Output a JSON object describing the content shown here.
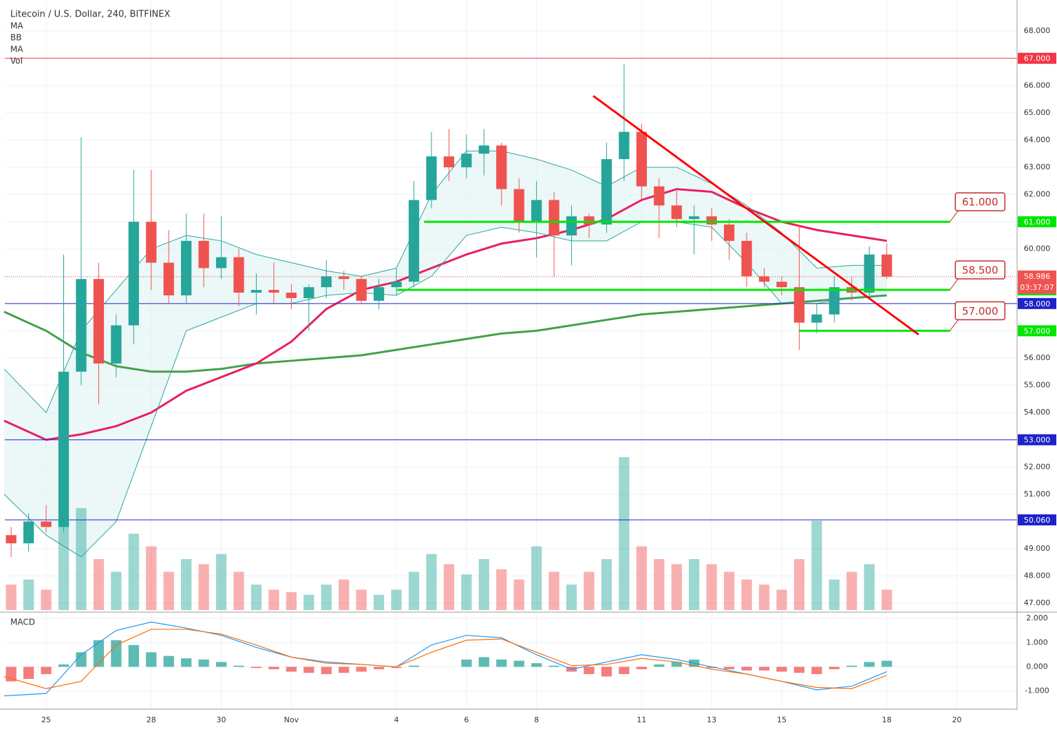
{
  "chart_data": [
    {
      "type": "candlestick",
      "title": "Litecoin / U.S. Dollar, 240, BITFINEX",
      "indicators": [
        "MA",
        "BB",
        "MA",
        "Vol"
      ],
      "x": [
        -1,
        -0.5,
        0,
        0.5,
        1,
        1.5,
        2,
        2.5,
        3,
        3.5,
        4,
        4.5,
        5,
        5.5,
        6,
        6.5,
        7,
        7.5,
        8,
        8.5,
        9,
        9.5,
        10,
        10.5,
        11,
        11.5,
        12,
        12.5,
        13,
        13.5,
        14,
        14.5,
        15,
        15.5,
        16,
        16.5,
        17,
        17.5,
        18,
        18.5,
        19,
        19.5,
        20,
        20.5,
        21,
        21.5,
        22,
        22.5,
        23,
        23.5,
        24
      ],
      "open": [
        49.5,
        49.2,
        50.0,
        49.8,
        55.5,
        58.9,
        55.8,
        57.2,
        61.0,
        59.5,
        58.3,
        60.3,
        59.3,
        59.7,
        58.4,
        58.5,
        58.4,
        58.2,
        58.6,
        59.0,
        58.9,
        58.1,
        58.6,
        58.8,
        61.8,
        63.4,
        63.0,
        63.5,
        63.8,
        62.2,
        61.0,
        61.8,
        60.5,
        61.2,
        60.9,
        63.3,
        64.3,
        62.3,
        61.6,
        61.1,
        61.2,
        60.9,
        60.3,
        59.0,
        58.8,
        58.6,
        57.3,
        57.6,
        58.6,
        58.4,
        59.8
      ],
      "high": [
        49.8,
        50.3,
        50.6,
        59.8,
        64.1,
        59.5,
        57.6,
        62.9,
        62.9,
        60.7,
        61.3,
        61.3,
        61.2,
        60.0,
        59.1,
        59.5,
        58.7,
        58.7,
        59.6,
        59.2,
        59.0,
        58.9,
        59.3,
        62.5,
        64.3,
        64.4,
        64.2,
        64.4,
        63.9,
        62.6,
        62.5,
        62.1,
        61.6,
        61.3,
        63.9,
        66.8,
        64.6,
        62.6,
        62.2,
        61.6,
        61.5,
        61.1,
        60.6,
        59.3,
        59.0,
        60.9,
        58.0,
        59.0,
        59.0,
        60.1,
        60.2
      ],
      "low": [
        48.7,
        48.9,
        49.6,
        49.6,
        55.0,
        54.3,
        55.3,
        56.5,
        58.5,
        58.0,
        58.0,
        58.6,
        58.9,
        57.9,
        57.6,
        58.0,
        57.8,
        57.0,
        58.2,
        58.5,
        58.0,
        57.8,
        58.3,
        58.6,
        61.5,
        62.5,
        62.6,
        62.7,
        61.6,
        60.6,
        59.7,
        59.0,
        59.4,
        60.4,
        60.6,
        62.5,
        61.8,
        60.4,
        60.8,
        59.8,
        60.3,
        59.6,
        58.6,
        58.6,
        58.3,
        56.3,
        56.9,
        57.3,
        58.1,
        58.3,
        58.9
      ],
      "close": [
        49.2,
        50.0,
        49.8,
        55.5,
        58.9,
        55.8,
        57.2,
        61.0,
        59.5,
        58.3,
        60.3,
        59.3,
        59.7,
        58.4,
        58.5,
        58.4,
        58.2,
        58.6,
        59.0,
        58.9,
        58.1,
        58.6,
        58.8,
        61.8,
        63.4,
        63.0,
        63.5,
        63.8,
        62.2,
        61.0,
        61.8,
        60.5,
        61.2,
        60.9,
        63.3,
        64.3,
        62.3,
        61.6,
        61.1,
        61.2,
        60.9,
        60.3,
        59.0,
        58.8,
        58.6,
        57.3,
        57.6,
        58.6,
        58.4,
        59.8,
        58.986
      ],
      "volume": [
        10,
        12,
        8,
        35,
        40,
        20,
        15,
        30,
        25,
        15,
        20,
        18,
        22,
        15,
        10,
        8,
        7,
        6,
        10,
        12,
        8,
        6,
        8,
        15,
        22,
        18,
        14,
        20,
        16,
        12,
        25,
        15,
        10,
        15,
        20,
        60,
        25,
        20,
        18,
        20,
        18,
        15,
        12,
        10,
        8,
        20,
        35,
        12,
        15,
        18,
        8
      ],
      "up_color": "#26a69a",
      "down_color": "#ef5350",
      "xlim": [
        -1.18,
        27.72
      ],
      "ylim": [
        46.7,
        69.14
      ],
      "yticks": [
        {
          "value": 47,
          "label": "47.000"
        },
        {
          "value": 48,
          "label": "48.000"
        },
        {
          "value": 49,
          "label": "49.000"
        },
        {
          "value": 50,
          "label": "50.000"
        },
        {
          "value": 51,
          "label": "51.000"
        },
        {
          "value": 52,
          "label": "52.000"
        },
        {
          "value": 53,
          "label": "53.000"
        },
        {
          "value": 54,
          "label": "54.000"
        },
        {
          "value": 55,
          "label": "55.000"
        },
        {
          "value": 56,
          "label": "56.000"
        },
        {
          "value": 57,
          "label": "57.000"
        },
        {
          "value": 58,
          "label": "58.000"
        },
        {
          "value": 59,
          "label": "59.000"
        },
        {
          "value": 60,
          "label": "60.000"
        },
        {
          "value": 61,
          "label": "61.000"
        },
        {
          "value": 62,
          "label": "62.000"
        },
        {
          "value": 63,
          "label": "63.000"
        },
        {
          "value": 64,
          "label": "64.000"
        },
        {
          "value": 65,
          "label": "65.000"
        },
        {
          "value": 66,
          "label": "66.000"
        },
        {
          "value": 67,
          "label": "67.000"
        },
        {
          "value": 68,
          "label": "68.000"
        }
      ],
      "overlay_x": [
        -1.2,
        0,
        1,
        2,
        3,
        4,
        5,
        6,
        7,
        8,
        9,
        10,
        11,
        12,
        13,
        14,
        15,
        16,
        17,
        18,
        19,
        20,
        21,
        22,
        23,
        24
      ],
      "bb_fill": "#e0f2f1",
      "overlays": [
        {
          "color": "#43a047",
          "width": 3,
          "values": [
            57.7,
            57.0,
            56.2,
            55.7,
            55.5,
            55.5,
            55.6,
            55.8,
            55.9,
            56.0,
            56.1,
            56.3,
            56.5,
            56.7,
            56.9,
            57.0,
            57.2,
            57.4,
            57.6,
            57.7,
            57.8,
            57.9,
            58.0,
            58.1,
            58.2,
            58.3
          ]
        },
        {
          "color": "#e91e63",
          "width": 3,
          "values": [
            53.7,
            53.0,
            53.2,
            53.5,
            54.0,
            54.8,
            55.3,
            55.8,
            56.6,
            57.8,
            58.5,
            58.8,
            59.3,
            59.8,
            60.2,
            60.4,
            60.7,
            61.1,
            61.8,
            62.2,
            62.1,
            61.5,
            61.0,
            60.7,
            60.5,
            60.3
          ]
        },
        {
          "color": "#26a69a",
          "width": 1,
          "values": [
            55.6,
            54.0,
            57.0,
            58.5,
            60.0,
            60.5,
            60.3,
            59.8,
            59.5,
            59.2,
            59.0,
            59.3,
            62.0,
            63.6,
            63.6,
            63.3,
            62.9,
            62.3,
            63.0,
            63.0,
            62.4,
            61.6,
            60.6,
            59.3,
            59.4,
            59.4
          ]
        },
        {
          "color": "#26a69a",
          "width": 1,
          "values": [
            51.0,
            49.5,
            48.7,
            50.0,
            53.5,
            57.0,
            57.5,
            58.0,
            58.0,
            58.3,
            58.4,
            58.3,
            59.0,
            60.5,
            60.8,
            60.6,
            60.3,
            60.3,
            61.0,
            61.0,
            60.8,
            59.5,
            58.0,
            58.0,
            58.2,
            58.3
          ]
        }
      ],
      "levels": [
        {
          "value": 67,
          "label": "67.000",
          "color": "#f23645"
        },
        {
          "value": 58,
          "label": "58.000",
          "color": "#1e22c9"
        },
        {
          "value": 53,
          "label": "53.000",
          "color": "#1e22c9"
        },
        {
          "value": 50.06,
          "label": "50.060",
          "color": "#1e22c9"
        }
      ],
      "zones": [
        {
          "value": 61,
          "label": "61.000",
          "from": 10.79,
          "to": 25.8
        },
        {
          "value": 58.5,
          "label": "58.500",
          "from": 10.02,
          "to": 25.8
        },
        {
          "value": 57,
          "label": "57.000",
          "from": 21.5,
          "to": 25.8
        }
      ],
      "zone_color": "#00e600",
      "callout_color": "#c62828",
      "current": {
        "value": 58.986,
        "label": "58.986",
        "countdown": "03:37:07",
        "color": "#ef5350"
      },
      "trendline": {
        "x": [
          15.62,
          24.91
        ],
        "y": [
          65.62,
          56.86
        ],
        "color": "#f00"
      }
    },
    {
      "type": "macd",
      "title": "MACD",
      "x": [
        -1.2,
        0,
        1,
        2,
        3,
        4,
        5,
        6,
        7,
        8,
        9,
        10,
        11,
        12,
        13,
        14,
        15,
        16,
        17,
        18,
        19,
        20,
        21,
        22,
        23,
        24
      ],
      "macd": [
        -1.2,
        -1.1,
        0.5,
        1.5,
        1.85,
        1.6,
        1.3,
        0.8,
        0.4,
        0.2,
        0.1,
        0.0,
        0.9,
        1.3,
        1.2,
        0.5,
        -0.1,
        0.2,
        0.5,
        0.3,
        0.0,
        -0.3,
        -0.6,
        -0.95,
        -0.8,
        -0.2
      ],
      "signal": [
        -0.4,
        -0.9,
        -0.6,
        0.9,
        1.55,
        1.55,
        1.35,
        0.9,
        0.4,
        0.15,
        0.1,
        0.0,
        0.6,
        1.1,
        1.15,
        0.6,
        0.05,
        0.1,
        0.35,
        0.2,
        -0.1,
        -0.3,
        -0.6,
        -0.85,
        -0.9,
        -0.35
      ],
      "histogram": [
        -0.6,
        -0.5,
        -0.3,
        0.1,
        0.6,
        1.1,
        1.1,
        0.9,
        0.6,
        0.45,
        0.35,
        0.3,
        0.2,
        0.05,
        -0.05,
        -0.1,
        -0.2,
        -0.25,
        -0.3,
        -0.25,
        -0.2,
        -0.1,
        -0.05,
        0.05,
        0.0,
        0.0,
        0.3,
        0.4,
        0.3,
        0.25,
        0.15,
        0.05,
        -0.2,
        -0.3,
        -0.4,
        -0.3,
        -0.1,
        0.1,
        0.2,
        0.3,
        -0.05,
        -0.1,
        -0.15,
        -0.15,
        -0.2,
        -0.25,
        -0.3,
        -0.1,
        0.05,
        0.2,
        0.25
      ],
      "macd_color": "#2196f3",
      "signal_color": "#ff6d00",
      "pos_color": "#26a69a",
      "neg_color": "#ef5350",
      "xlim": [
        -1.18,
        27.72
      ],
      "ylim": [
        -1.75,
        2.23
      ],
      "yticks": [
        {
          "value": 2,
          "label": "2.000"
        },
        {
          "value": 1,
          "label": "1.000"
        },
        {
          "value": 0,
          "label": "0.000"
        },
        {
          "value": -1,
          "label": "-1.000"
        }
      ],
      "xticks": [
        {
          "value": 0,
          "label": "25"
        },
        {
          "value": 3,
          "label": "28"
        },
        {
          "value": 5,
          "label": "30"
        },
        {
          "value": 7,
          "label": "Nov"
        },
        {
          "value": 10,
          "label": "4"
        },
        {
          "value": 12,
          "label": "6"
        },
        {
          "value": 14,
          "label": "8"
        },
        {
          "value": 17,
          "label": "11"
        },
        {
          "value": 19,
          "label": "13"
        },
        {
          "value": 21,
          "label": "15"
        },
        {
          "value": 24,
          "label": "18"
        },
        {
          "value": 26,
          "label": "20"
        }
      ]
    }
  ]
}
